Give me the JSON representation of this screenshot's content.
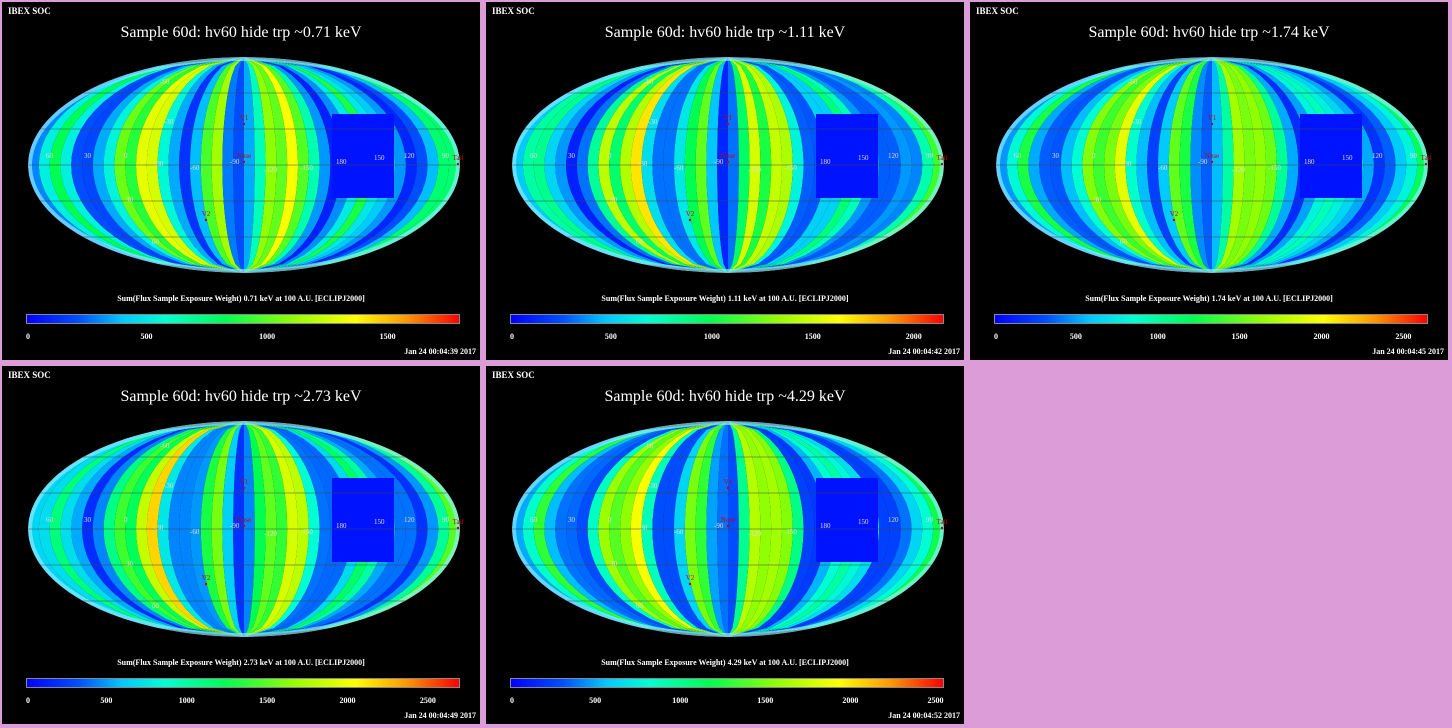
{
  "page": {
    "background": "#dc9cd8"
  },
  "chart_data": [
    {
      "type": "heatmap",
      "header": "IBEX SOC",
      "title": "Sample 60d: hv60 hide trp ~0.71 keV",
      "colorbar_label": "Sum(Flux Sample Exposure Weight)  0.71 keV at 100 A.U. [ECLIPJ2000]",
      "colorbar_range": [
        0,
        1800
      ],
      "colorbar_ticks": [
        "0",
        "500",
        "1000",
        "1500"
      ],
      "colorbar_tick_values": [
        0,
        500,
        1000,
        1500
      ],
      "timestamp": "Jan 24 00:04:39 2017",
      "map_labels": {
        "marker_top": "V1",
        "marker_center": "Nose",
        "marker_lower": "V2",
        "marker_right": "Tail"
      },
      "grid_labels": [
        "60",
        "30",
        "0",
        "-30",
        "-60",
        "-90",
        "-120",
        "-150",
        "180",
        "150",
        "120",
        "90",
        "30",
        "60",
        "-30",
        "-60"
      ],
      "colormap": [
        "#0000ff",
        "#0050ff",
        "#00c8ff",
        "#00ffd2",
        "#00ff50",
        "#96ff00",
        "#ffff00",
        "#ff9600",
        "#ff0000"
      ]
    },
    {
      "type": "heatmap",
      "header": "IBEX SOC",
      "title": "Sample 60d: hv60 hide trp ~1.11 keV",
      "colorbar_label": "Sum(Flux Sample Exposure Weight)  1.11 keV at 100 A.U. [ECLIPJ2000]",
      "colorbar_range": [
        0,
        2150
      ],
      "colorbar_ticks": [
        "0",
        "500",
        "1000",
        "1500",
        "2000"
      ],
      "colorbar_tick_values": [
        0,
        500,
        1000,
        1500,
        2000
      ],
      "timestamp": "Jan 24 00:04:42 2017",
      "map_labels": {
        "marker_top": "V1",
        "marker_center": "Nose",
        "marker_lower": "V2",
        "marker_right": "Tail"
      },
      "grid_labels": [
        "60",
        "30",
        "0",
        "-30",
        "-60",
        "-90",
        "-120",
        "-150",
        "180",
        "150",
        "120",
        "90",
        "30",
        "60",
        "-30",
        "-60"
      ],
      "colormap": [
        "#0000ff",
        "#0050ff",
        "#00c8ff",
        "#00ffd2",
        "#00ff50",
        "#96ff00",
        "#ffff00",
        "#ff9600",
        "#ff0000"
      ]
    },
    {
      "type": "heatmap",
      "header": "IBEX SOC",
      "title": "Sample 60d: hv60 hide trp ~1.74 keV",
      "colorbar_label": "Sum(Flux Sample Exposure Weight)  1.74 keV at 100 A.U. [ECLIPJ2000]",
      "colorbar_range": [
        0,
        2650
      ],
      "colorbar_ticks": [
        "0",
        "500",
        "1000",
        "1500",
        "2000",
        "2500"
      ],
      "colorbar_tick_values": [
        0,
        500,
        1000,
        1500,
        2000,
        2500
      ],
      "timestamp": "Jan 24 00:04:45 2017",
      "map_labels": {
        "marker_top": "V1",
        "marker_center": "Nose",
        "marker_lower": "V2",
        "marker_right": "Tail"
      },
      "grid_labels": [
        "60",
        "30",
        "0",
        "-30",
        "-60",
        "-90",
        "-120",
        "-150",
        "180",
        "150",
        "120",
        "90",
        "30",
        "60",
        "-30",
        "-60"
      ],
      "colormap": [
        "#0000ff",
        "#0050ff",
        "#00c8ff",
        "#00ffd2",
        "#00ff50",
        "#96ff00",
        "#ffff00",
        "#ff9600",
        "#ff0000"
      ]
    },
    {
      "type": "heatmap",
      "header": "IBEX SOC",
      "title": "Sample 60d: hv60 hide trp ~2.73 keV",
      "colorbar_label": "Sum(Flux Sample Exposure Weight)  2.73 keV at 100 A.U. [ECLIPJ2000]",
      "colorbar_range": [
        0,
        2700
      ],
      "colorbar_ticks": [
        "0",
        "500",
        "1000",
        "1500",
        "2000",
        "2500"
      ],
      "colorbar_tick_values": [
        0,
        500,
        1000,
        1500,
        2000,
        2500
      ],
      "timestamp": "Jan 24 00:04:49 2017",
      "map_labels": {
        "marker_top": "V1",
        "marker_center": "Nose",
        "marker_lower": "V2",
        "marker_right": "Tail"
      },
      "grid_labels": [
        "60",
        "30",
        "0",
        "-30",
        "-60",
        "-90",
        "-120",
        "-150",
        "180",
        "150",
        "120",
        "90",
        "30",
        "60",
        "-30",
        "-60"
      ],
      "colormap": [
        "#0000ff",
        "#0050ff",
        "#00c8ff",
        "#00ffd2",
        "#00ff50",
        "#96ff00",
        "#ffff00",
        "#ff9600",
        "#ff0000"
      ]
    },
    {
      "type": "heatmap",
      "header": "IBEX SOC",
      "title": "Sample 60d: hv60 hide trp ~4.29 keV",
      "colorbar_label": "Sum(Flux Sample Exposure Weight)  4.29 keV at 100 A.U. [ECLIPJ2000]",
      "colorbar_range": [
        0,
        2550
      ],
      "colorbar_ticks": [
        "0",
        "500",
        "1000",
        "1500",
        "2000",
        "2500"
      ],
      "colorbar_tick_values": [
        0,
        500,
        1000,
        1500,
        2000,
        2500
      ],
      "timestamp": "Jan 24 00:04:52 2017",
      "map_labels": {
        "marker_top": "V1",
        "marker_center": "Nose",
        "marker_lower": "V2",
        "marker_right": "Tail"
      },
      "grid_labels": [
        "60",
        "30",
        "0",
        "-30",
        "-60",
        "-90",
        "-120",
        "-150",
        "180",
        "150",
        "120",
        "90",
        "30",
        "60",
        "-30",
        "-60"
      ],
      "colormap": [
        "#0000ff",
        "#0050ff",
        "#00c8ff",
        "#00ffd2",
        "#00ff50",
        "#96ff00",
        "#ffff00",
        "#ff9600",
        "#ff0000"
      ]
    }
  ]
}
